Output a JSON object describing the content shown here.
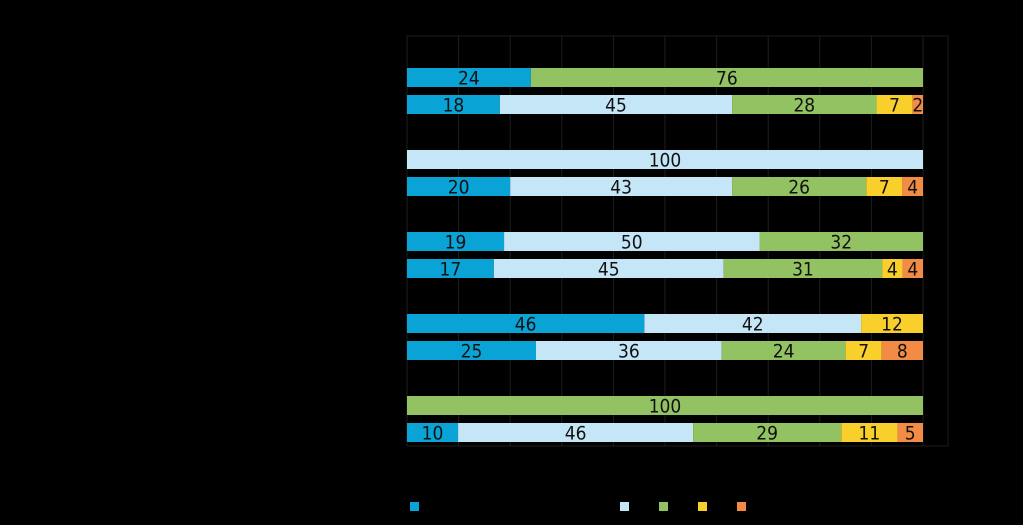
{
  "chart_data": {
    "type": "bar",
    "orientation": "horizontal",
    "stacked": true,
    "title": "",
    "xlabel": "",
    "ylabel": "",
    "xlim": [
      0,
      100
    ],
    "grid": true,
    "legend_position": "bottom",
    "colors": [
      "#0aa3d6",
      "#c5e6f6",
      "#93c262",
      "#f9cf2b",
      "#f28b46"
    ],
    "bars": [
      {
        "values": [
          24,
          0,
          76,
          0,
          0
        ],
        "labels": [
          "24",
          "",
          "76",
          "",
          ""
        ]
      },
      {
        "values": [
          18,
          45,
          28,
          7,
          2
        ],
        "labels": [
          "18",
          "45",
          "28",
          "7",
          "2"
        ]
      },
      {
        "values": [
          0,
          100,
          0,
          0,
          0
        ],
        "labels": [
          "",
          "100",
          "",
          "",
          ""
        ]
      },
      {
        "values": [
          20,
          43,
          26,
          7,
          4
        ],
        "labels": [
          "20",
          "43",
          "26",
          "7",
          "4"
        ]
      },
      {
        "values": [
          19,
          50,
          32,
          0,
          0
        ],
        "labels": [
          "19",
          "50",
          "32",
          "",
          ""
        ]
      },
      {
        "values": [
          17,
          45,
          31,
          4,
          4
        ],
        "labels": [
          "17",
          "45",
          "31",
          "4",
          "4"
        ]
      },
      {
        "values": [
          46,
          42,
          0,
          12,
          0
        ],
        "labels": [
          "46",
          "42",
          "",
          "12",
          ""
        ]
      },
      {
        "values": [
          25,
          36,
          24,
          7,
          8
        ],
        "labels": [
          "25",
          "36",
          "24",
          "7",
          "8"
        ]
      },
      {
        "values": [
          0,
          0,
          100,
          0,
          0
        ],
        "labels": [
          "",
          "",
          "100",
          "",
          ""
        ]
      },
      {
        "values": [
          10,
          46,
          29,
          11,
          5
        ],
        "labels": [
          "10",
          "46",
          "29",
          "11",
          "5"
        ]
      }
    ]
  }
}
